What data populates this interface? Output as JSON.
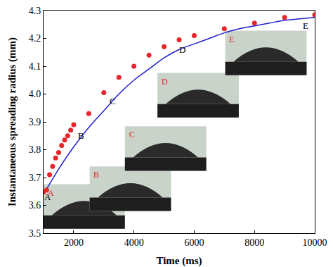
{
  "chart_data": {
    "type": "scatter",
    "x_label": "Time (ms)",
    "y_label": "Instantaneous spreading radius (mm)",
    "series": [
      {
        "type": "scatter",
        "marker": "circle",
        "color": "#e8262b",
        "x": [
          1000,
          1100,
          1200,
          1300,
          1400,
          1500,
          1600,
          1700,
          1800,
          1900,
          2000,
          2500,
          3000,
          3500,
          4000,
          4500,
          5000,
          5500,
          6000,
          7000,
          8000,
          9000,
          10000
        ],
        "values": [
          3.648,
          3.655,
          3.71,
          3.74,
          3.77,
          3.79,
          3.815,
          3.835,
          3.85,
          3.87,
          3.89,
          3.93,
          4.005,
          4.06,
          4.1,
          4.14,
          4.17,
          4.195,
          4.21,
          4.235,
          4.255,
          4.275,
          4.285
        ]
      },
      {
        "type": "line",
        "line_style": "solid",
        "color": "#1f1fd0",
        "x": [
          1000,
          1500,
          2000,
          2500,
          3000,
          3500,
          4000,
          4500,
          5000,
          5500,
          6000,
          6500,
          7000,
          7500,
          8000,
          8500,
          9000,
          9500,
          10000
        ],
        "values": [
          3.64,
          3.73,
          3.81,
          3.88,
          3.94,
          4.0,
          4.05,
          4.09,
          4.13,
          4.16,
          4.18,
          4.2,
          4.22,
          4.235,
          4.245,
          4.255,
          4.265,
          4.27,
          4.275
        ]
      }
    ],
    "annotations": [
      {
        "text": "A",
        "x": 1150,
        "y": 3.63
      },
      {
        "text": "B",
        "x": 2250,
        "y": 3.85
      },
      {
        "text": "C",
        "x": 3300,
        "y": 3.975
      },
      {
        "text": "D",
        "x": 5600,
        "y": 4.16
      },
      {
        "text": "E",
        "x": 9700,
        "y": 4.245
      }
    ],
    "xlim": [
      1000,
      10000
    ],
    "xticks": [
      2000,
      4000,
      6000,
      8000,
      10000
    ],
    "ylim": [
      3.5,
      4.3
    ],
    "yticks": [
      {
        "value": 3.5,
        "label": "3.5"
      },
      {
        "value": 3.6,
        "label": "3.6"
      },
      {
        "value": 3.7,
        "label": "3.7"
      },
      {
        "value": 3.8,
        "label": "3.8"
      },
      {
        "value": 3.9,
        "label": "3.9"
      },
      {
        "value": 4.0,
        "label": "4.0"
      },
      {
        "value": 4.1,
        "label": "4.1"
      },
      {
        "value": 4.2,
        "label": "4.2"
      },
      {
        "value": 4.3,
        "label": "4.3"
      }
    ],
    "grid": false
  }
}
